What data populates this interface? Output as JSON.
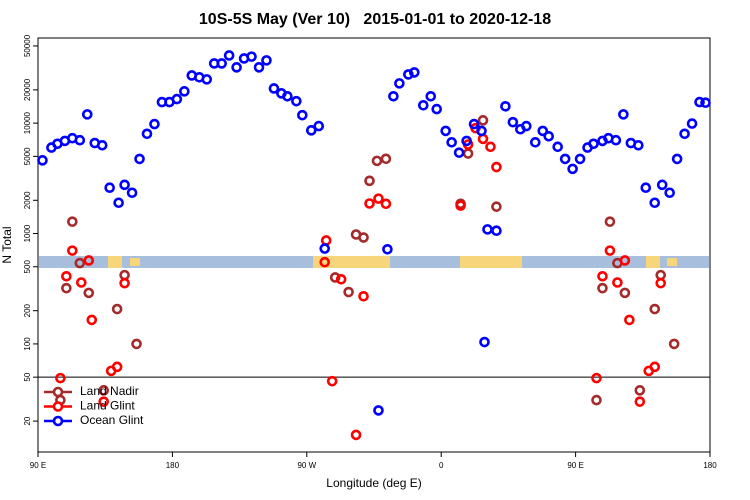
{
  "chart_data": {
    "type": "scatter",
    "title": "10S-5S May (Ver 10)   2015-01-01 to 2020-12-18",
    "x_label": "Longitude (deg E)",
    "y_label": "N Total",
    "log_y": true,
    "legend": "bottom-left",
    "reference_line": 50,
    "xlim": [
      90,
      540
    ],
    "xticks": [
      {
        "value": 90,
        "label": "90 E"
      },
      180,
      {
        "value": 270,
        "label": "90 W"
      },
      {
        "value": 360,
        "label": "0"
      },
      {
        "value": 450,
        "label": "90 E"
      },
      {
        "value": 540,
        "label": "180"
      }
    ],
    "ylim": [
      10.5,
      59000
    ],
    "yticks": [
      20,
      50,
      100,
      200,
      500,
      1000,
      2000,
      5000,
      10000,
      20000,
      50000
    ],
    "series": [
      {
        "name": "Land Nadir",
        "color": "#a52a2a",
        "x": [
          105,
          109,
          113,
          118,
          124,
          134,
          143,
          148,
          156,
          289,
          298,
          303,
          308,
          312,
          317,
          323,
          373,
          378,
          388,
          397,
          464,
          468,
          473,
          478,
          483,
          493,
          503,
          507,
          516
        ],
        "values": [
          31,
          320,
          1280,
          540,
          290,
          38,
          207,
          420,
          100,
          400,
          295,
          980,
          920,
          3000,
          4550,
          4750,
          1860,
          5300,
          10600,
          1750,
          31,
          320,
          1280,
          540,
          290,
          38,
          207,
          420,
          100
        ]
      },
      {
        "name": "Land Glint",
        "color": "#ff0000",
        "x": [
          105,
          109,
          113,
          119,
          124,
          126,
          134,
          139,
          143,
          148,
          282,
          283,
          287,
          293,
          303,
          308,
          312,
          318,
          323,
          373,
          378,
          383,
          388,
          393,
          397,
          464,
          468,
          473,
          478,
          483,
          486,
          493,
          499,
          503,
          507
        ],
        "values": [
          49,
          410,
          700,
          360,
          570,
          165,
          30,
          57,
          62,
          355,
          550,
          865,
          46,
          385,
          15,
          270,
          1870,
          2070,
          1860,
          1790,
          6400,
          9000,
          7200,
          6100,
          4000,
          49,
          410,
          700,
          360,
          570,
          165,
          30,
          57,
          62,
          355
        ]
      },
      {
        "name": "Ocean Glint",
        "color": "#0000ff",
        "x": [
          93,
          99,
          103,
          108,
          113,
          118,
          123,
          128,
          133,
          138,
          144,
          148,
          153,
          158,
          163,
          168,
          173,
          178,
          183,
          188,
          193,
          198,
          203,
          208,
          213,
          218,
          223,
          228,
          233,
          238,
          243,
          248,
          253,
          257,
          263,
          267,
          273,
          278,
          282,
          318,
          324,
          328,
          332,
          338,
          342,
          348,
          353,
          357,
          363,
          367,
          372,
          377,
          382,
          387,
          389,
          391,
          397,
          403,
          408,
          413,
          417,
          423,
          428,
          432,
          438,
          443,
          448,
          453,
          458,
          462,
          468,
          472,
          477,
          482,
          487,
          492,
          497,
          503,
          508,
          513,
          518,
          523,
          528,
          533,
          537
        ],
        "values": [
          4600,
          6000,
          6500,
          6900,
          7300,
          7000,
          12000,
          6600,
          6300,
          2600,
          1900,
          2760,
          2340,
          4740,
          8000,
          9800,
          15500,
          15500,
          16500,
          19400,
          27000,
          26000,
          24900,
          34700,
          34700,
          41000,
          32000,
          38500,
          40000,
          32000,
          37000,
          20600,
          18600,
          17500,
          15800,
          11800,
          8600,
          9400,
          730,
          25,
          720,
          17500,
          22900,
          27600,
          28800,
          14500,
          17500,
          13400,
          8500,
          6700,
          5400,
          6900,
          9800,
          8500,
          104,
          1090,
          1060,
          14200,
          10200,
          8800,
          9400,
          6700,
          8500,
          7600,
          6100,
          4740,
          3850,
          4740,
          6000,
          6500,
          6900,
          7300,
          7000,
          12000,
          6600,
          6300,
          2600,
          1900,
          2760,
          2340,
          4740,
          8000,
          9900,
          15500,
          15300
        ]
      }
    ]
  }
}
